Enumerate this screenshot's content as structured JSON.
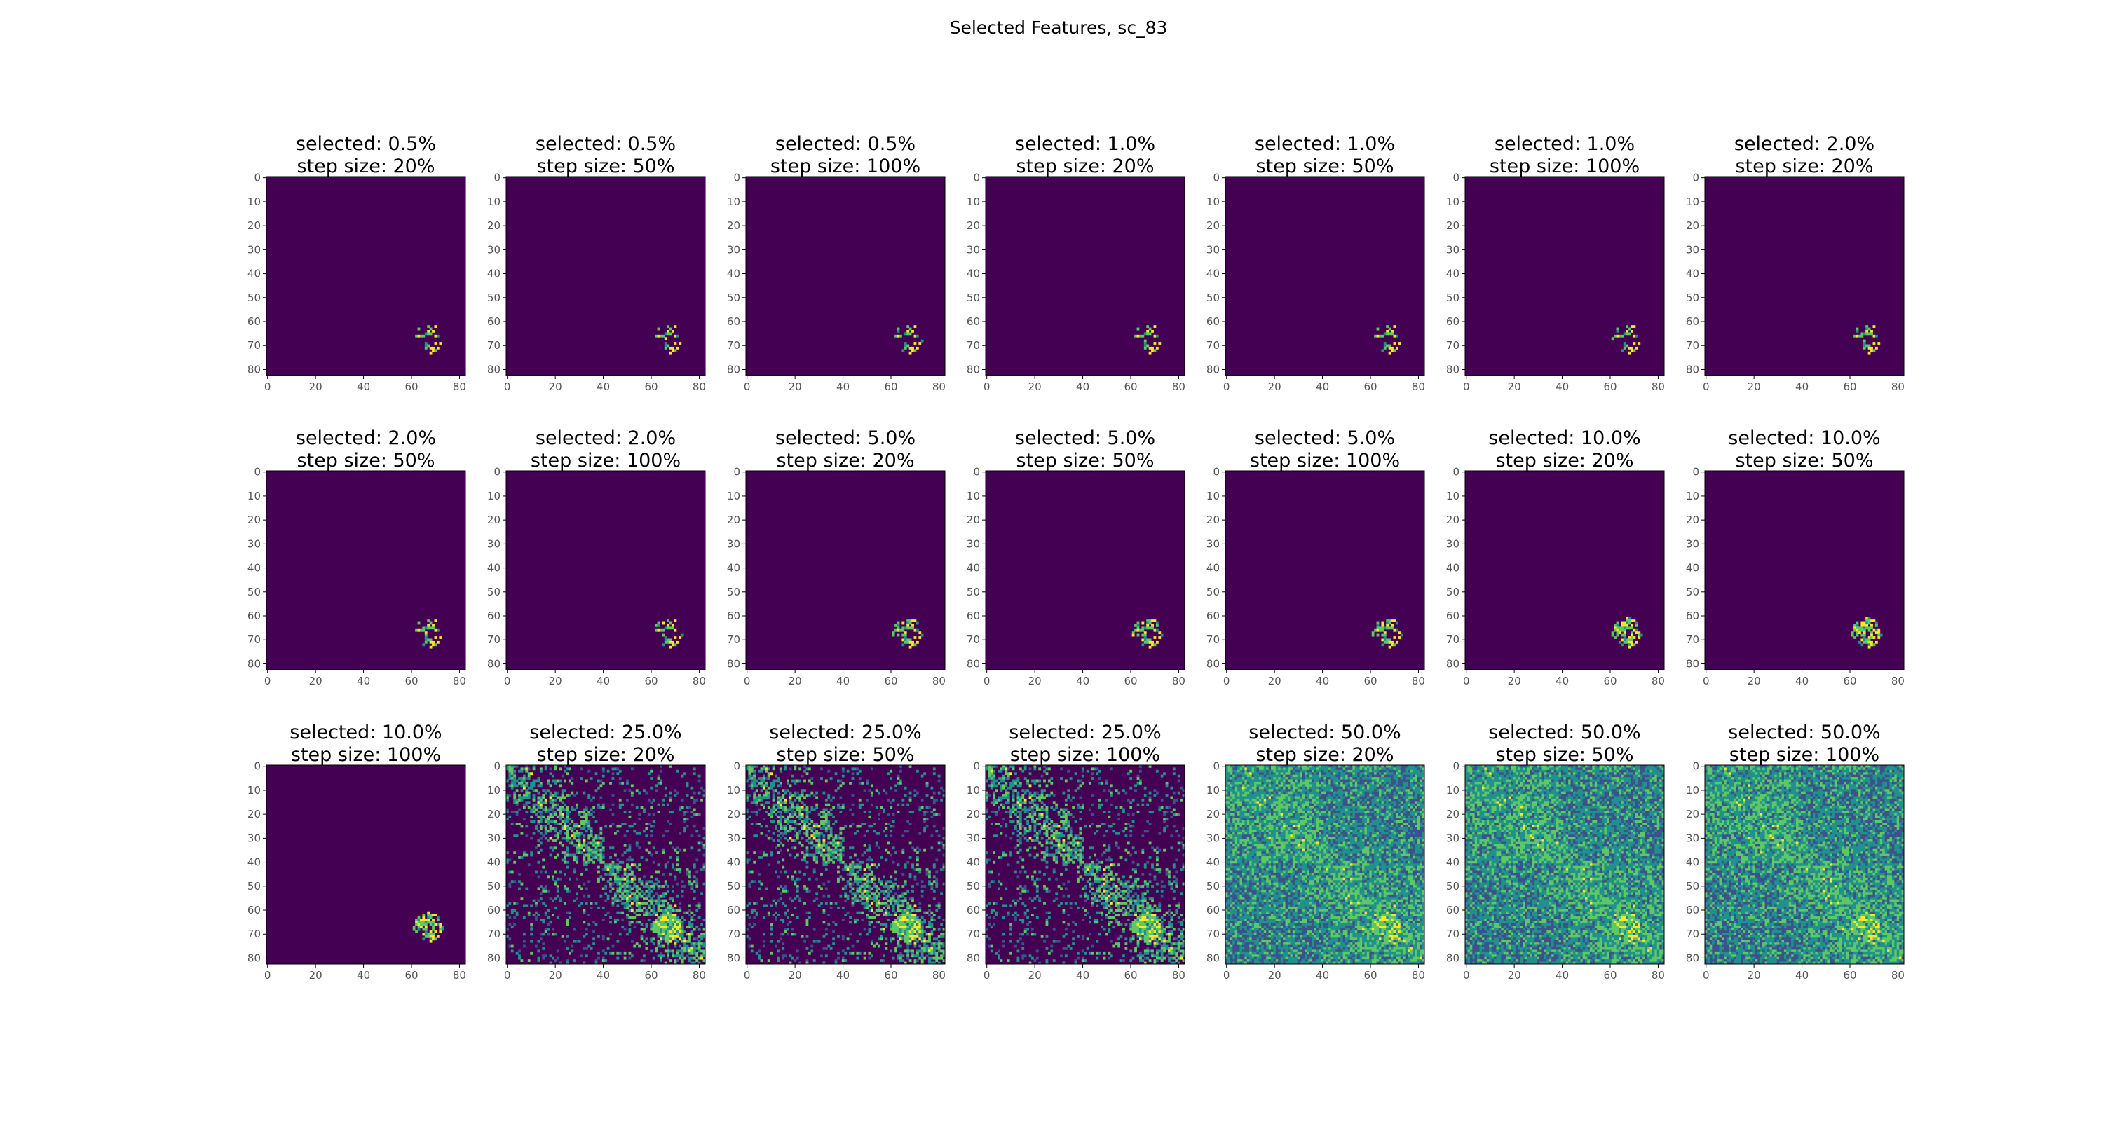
{
  "figure": {
    "title": "Selected Features, sc_83"
  },
  "chart_data": {
    "type": "heatmap",
    "matrix_size": 83,
    "colormap": "viridis",
    "tick_values": [
      0,
      10,
      20,
      30,
      40,
      50,
      60,
      70,
      80
    ],
    "x_tick_values": [
      0,
      20,
      40,
      60,
      80
    ],
    "y_tick_values": [
      0,
      10,
      20,
      30,
      40,
      50,
      60,
      70,
      80
    ],
    "grid_rows": 3,
    "grid_cols": 7,
    "panels": [
      {
        "title_line1": "selected: 0.5%",
        "title_line2": "step size: 20%",
        "selected": 0.5,
        "step_size": 20
      },
      {
        "title_line1": "selected: 0.5%",
        "title_line2": "step size: 50%",
        "selected": 0.5,
        "step_size": 50
      },
      {
        "title_line1": "selected: 0.5%",
        "title_line2": "step size: 100%",
        "selected": 0.5,
        "step_size": 100
      },
      {
        "title_line1": "selected: 1.0%",
        "title_line2": "step size: 20%",
        "selected": 1.0,
        "step_size": 20
      },
      {
        "title_line1": "selected: 1.0%",
        "title_line2": "step size: 50%",
        "selected": 1.0,
        "step_size": 50
      },
      {
        "title_line1": "selected: 1.0%",
        "title_line2": "step size: 100%",
        "selected": 1.0,
        "step_size": 100
      },
      {
        "title_line1": "selected: 2.0%",
        "title_line2": "step size: 20%",
        "selected": 2.0,
        "step_size": 20
      },
      {
        "title_line1": "selected: 2.0%",
        "title_line2": "step size: 50%",
        "selected": 2.0,
        "step_size": 50
      },
      {
        "title_line1": "selected: 2.0%",
        "title_line2": "step size: 100%",
        "selected": 2.0,
        "step_size": 100
      },
      {
        "title_line1": "selected: 5.0%",
        "title_line2": "step size: 20%",
        "selected": 5.0,
        "step_size": 20
      },
      {
        "title_line1": "selected: 5.0%",
        "title_line2": "step size: 50%",
        "selected": 5.0,
        "step_size": 50
      },
      {
        "title_line1": "selected: 5.0%",
        "title_line2": "step size: 100%",
        "selected": 5.0,
        "step_size": 100
      },
      {
        "title_line1": "selected: 10.0%",
        "title_line2": "step size: 20%",
        "selected": 10.0,
        "step_size": 20
      },
      {
        "title_line1": "selected: 10.0%",
        "title_line2": "step size: 50%",
        "selected": 10.0,
        "step_size": 50
      },
      {
        "title_line1": "selected: 10.0%",
        "title_line2": "step size: 100%",
        "selected": 10.0,
        "step_size": 100
      },
      {
        "title_line1": "selected: 25.0%",
        "title_line2": "step size: 20%",
        "selected": 25.0,
        "step_size": 20
      },
      {
        "title_line1": "selected: 25.0%",
        "title_line2": "step size: 50%",
        "selected": 25.0,
        "step_size": 50
      },
      {
        "title_line1": "selected: 25.0%",
        "title_line2": "step size: 100%",
        "selected": 25.0,
        "step_size": 100
      },
      {
        "title_line1": "selected: 50.0%",
        "title_line2": "step size: 20%",
        "selected": 50.0,
        "step_size": 20
      },
      {
        "title_line1": "selected: 50.0%",
        "title_line2": "step size: 50%",
        "selected": 50.0,
        "step_size": 50
      },
      {
        "title_line1": "selected: 50.0%",
        "title_line2": "step size: 100%",
        "selected": 50.0,
        "step_size": 100
      }
    ]
  },
  "colors": {
    "background_cell": "#440154",
    "viridis_low": "#440154",
    "viridis_mid_low": "#3b528b",
    "viridis_mid": "#21918c",
    "viridis_mid_high": "#5ec962",
    "viridis_high": "#fde725",
    "axis": "#000000",
    "tick_label": "#555555"
  }
}
